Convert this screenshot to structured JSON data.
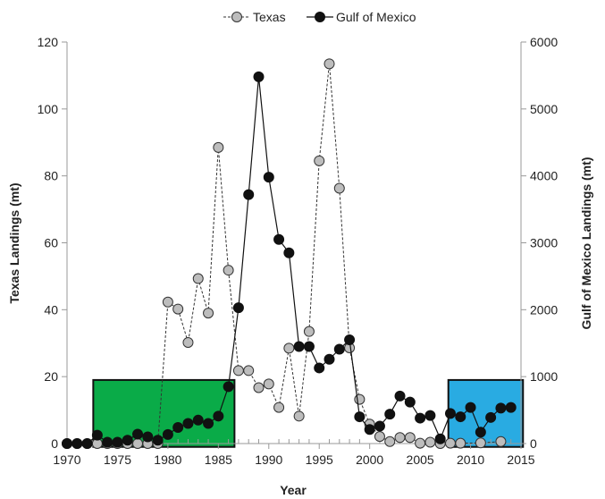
{
  "chart_data": {
    "type": "line",
    "xlabel": "Year",
    "xlim": [
      1970,
      2015
    ],
    "xticks": [
      1970,
      1975,
      1980,
      1985,
      1990,
      1995,
      2000,
      2005,
      2010,
      2015
    ],
    "y_left": {
      "label": "Texas Landings (mt)",
      "lim": [
        0,
        120
      ],
      "ticks": [
        0,
        20,
        40,
        60,
        80,
        100,
        120
      ]
    },
    "y_right": {
      "label": "Gulf of Mexico Landings (mt)",
      "lim": [
        0,
        6000
      ],
      "ticks": [
        0,
        1000,
        2000,
        3000,
        4000,
        5000,
        6000
      ]
    },
    "legend_position": "top-center",
    "shaded_regions": [
      {
        "x_start": 1972.6,
        "x_end": 1986.6,
        "y_bottom": -1,
        "y_top": 19,
        "color": "#0aab48"
      },
      {
        "x_start": 2007.8,
        "x_end": 2015.2,
        "y_bottom": -1,
        "y_top": 19,
        "color": "#29abe2"
      }
    ],
    "series": [
      {
        "name": "Texas",
        "axis": "left",
        "style": "dashed",
        "marker_color": "#bdbdbd",
        "x": [
          1970,
          1971,
          1972,
          1973,
          1974,
          1975,
          1976,
          1977,
          1978,
          1979,
          1980,
          1981,
          1982,
          1983,
          1984,
          1985,
          1986,
          1987,
          1988,
          1989,
          1990,
          1991,
          1992,
          1993,
          1994,
          1995,
          1996,
          1997,
          1998,
          1999,
          2000,
          2001,
          2002,
          2003,
          2004,
          2005,
          2006,
          2007,
          2008,
          2009,
          2011,
          2013
        ],
        "y": [
          0,
          0,
          0,
          0,
          0,
          0,
          0,
          0,
          0,
          0,
          42.3,
          40.2,
          30.2,
          49.3,
          39,
          88.5,
          51.8,
          21.8,
          21.8,
          16.7,
          17.8,
          10.8,
          28.5,
          8.2,
          33.5,
          84.5,
          113.5,
          76.3,
          28.6,
          13.2,
          5.8,
          2.1,
          0.6,
          1.8,
          1.8,
          0.1,
          0.4,
          0,
          0.1,
          0.1,
          0.2,
          0.6
        ]
      },
      {
        "name": "Gulf of Mexico",
        "axis": "right",
        "style": "solid",
        "marker_color": "#111111",
        "x": [
          1970,
          1971,
          1972,
          1973,
          1974,
          1975,
          1976,
          1977,
          1978,
          1979,
          1980,
          1981,
          1982,
          1983,
          1984,
          1985,
          1986,
          1987,
          1988,
          1989,
          1990,
          1991,
          1992,
          1993,
          1994,
          1995,
          1996,
          1997,
          1998,
          1999,
          2000,
          2001,
          2002,
          2003,
          2004,
          2005,
          2006,
          2007,
          2008,
          2009,
          2010,
          2011,
          2012,
          2013,
          2014
        ],
        "y": [
          0,
          0,
          0,
          125,
          20,
          20,
          50,
          140,
          100,
          50,
          135,
          240,
          300,
          350,
          300,
          410,
          850,
          2030,
          3720,
          5480,
          3980,
          3050,
          2850,
          1450,
          1450,
          1130,
          1260,
          1410,
          1550,
          400,
          210,
          260,
          440,
          710,
          620,
          380,
          420,
          70,
          450,
          400,
          540,
          170,
          390,
          530,
          540
        ]
      }
    ]
  }
}
